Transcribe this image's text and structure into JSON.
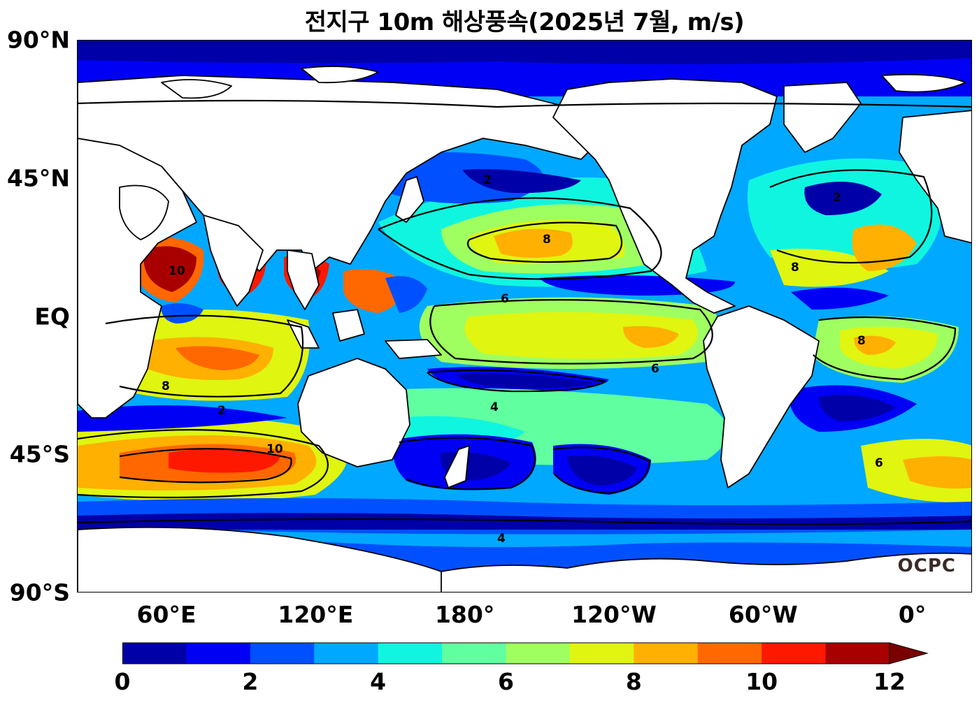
{
  "title": "전지구 10m 해상풍속(2025년 7월, m/s)",
  "credit": "OCPC",
  "lat_labels": [
    "90°N",
    "45°N",
    "EQ",
    "45°S",
    "90°S"
  ],
  "lon_labels": [
    "60°E",
    "120°E",
    "180°",
    "120°W",
    "60°W",
    "0°"
  ],
  "lat_values": [
    90,
    45,
    0,
    -45,
    -90
  ],
  "lon_values": [
    60,
    120,
    180,
    240,
    300,
    360
  ],
  "map_extent": {
    "lon_min": 24,
    "lon_max": 384,
    "lat_min": -90,
    "lat_max": 90
  },
  "colorbar": {
    "tick_labels": [
      "0",
      "2",
      "4",
      "6",
      "8",
      "10",
      "12"
    ],
    "tick_values": [
      0,
      2,
      4,
      6,
      8,
      10,
      12
    ],
    "levels": [
      0,
      1,
      2,
      3,
      4,
      5,
      6,
      7,
      8,
      9,
      10,
      11,
      12
    ],
    "colors": [
      "#0000a8",
      "#0000f5",
      "#0050ff",
      "#00a8ff",
      "#10f5e0",
      "#60ff9f",
      "#9fff60",
      "#e0f510",
      "#ffb000",
      "#ff6800",
      "#ff1800",
      "#a80000"
    ],
    "extend": "max"
  },
  "contour_labels": [
    "2",
    "4",
    "6",
    "8",
    "10"
  ],
  "colors": {
    "land": "#ffffff",
    "coast": "#000000",
    "contour": "#000000"
  }
}
